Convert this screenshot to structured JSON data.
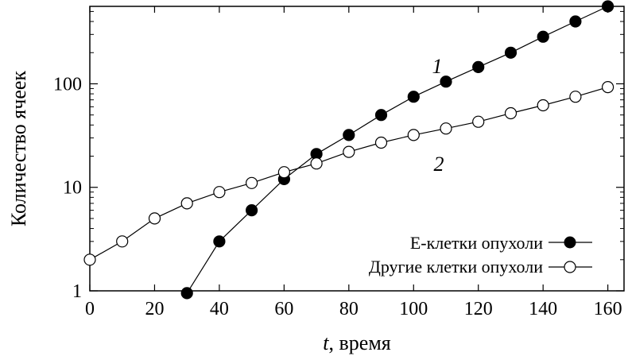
{
  "chart_data": {
    "type": "line",
    "title": "",
    "xlabel_italic": "t",
    "xlabel_rest": ", время",
    "ylabel": "Количество ячеек",
    "xlim": [
      0,
      165
    ],
    "ylim": [
      1,
      560
    ],
    "y_scale": "log",
    "grid": false,
    "legend_position": "bottom-right",
    "x_ticks": [
      0,
      20,
      40,
      60,
      80,
      100,
      120,
      140,
      160
    ],
    "x_tick_labels": [
      "0",
      "20",
      "40",
      "60",
      "80",
      "100",
      "120",
      "140",
      "160"
    ],
    "y_ticks": [
      1,
      10,
      100
    ],
    "y_tick_labels": [
      "1",
      "10",
      "100"
    ],
    "series": [
      {
        "name": "Е-клетки опухоли",
        "curve_label": "1",
        "marker": "filled-circle",
        "x": [
          30,
          40,
          50,
          60,
          70,
          80,
          90,
          100,
          110,
          120,
          130,
          140,
          150,
          160
        ],
        "y": [
          0.95,
          3,
          6,
          12,
          21,
          32,
          50,
          75,
          105,
          145,
          200,
          285,
          400,
          560
        ]
      },
      {
        "name": "Другие клетки опухоли",
        "curve_label": "2",
        "marker": "open-circle",
        "x": [
          0,
          10,
          20,
          30,
          40,
          50,
          60,
          70,
          80,
          90,
          100,
          110,
          120,
          130,
          140,
          150,
          160
        ],
        "y": [
          2,
          3,
          5,
          7,
          9,
          11,
          14,
          17,
          22,
          27,
          32,
          37,
          43,
          52,
          62,
          75,
          93
        ]
      }
    ]
  }
}
